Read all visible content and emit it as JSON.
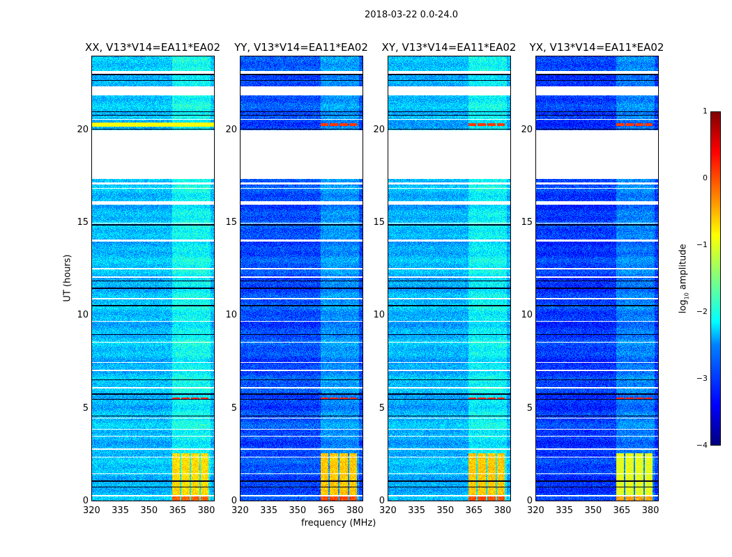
{
  "suptitle": "2018-03-22 0.0-24.0",
  "chart_data": {
    "type": "heatmap",
    "xlabel": "frequency (MHz)",
    "ylabel": "UT (hours)",
    "xlim": [
      320,
      384.5
    ],
    "ylim": [
      0,
      24
    ],
    "xticks": [
      "320",
      "335",
      "350",
      "365",
      "380"
    ],
    "yticks": [
      "0",
      "5",
      "10",
      "15",
      "20"
    ],
    "colorbar": {
      "label_main": "log",
      "label_sub": "10",
      "label_rest": " amplitude",
      "range": [
        -4,
        1
      ],
      "ticks": [
        "1",
        "0",
        "−1",
        "−2",
        "−3",
        "−4"
      ],
      "colormap": "jet"
    },
    "flagged_hours": [
      [
        23.05,
        23.2
      ],
      [
        21.9,
        22.35
      ],
      [
        20.55,
        20.6
      ],
      [
        19.2,
        20.0
      ],
      [
        17.4,
        19.2
      ],
      [
        17.1,
        17.2
      ],
      [
        16.85,
        16.9
      ],
      [
        16.0,
        16.2
      ],
      [
        15.0,
        15.03
      ],
      [
        14.0,
        14.12
      ],
      [
        12.5,
        12.6
      ],
      [
        12.05,
        12.12
      ],
      [
        10.9,
        10.95
      ],
      [
        9.68,
        9.72
      ],
      [
        8.58,
        8.62
      ],
      [
        7.48,
        7.52
      ],
      [
        7.05,
        7.1
      ],
      [
        6.08,
        6.15
      ],
      [
        4.48,
        4.52
      ],
      [
        3.88,
        3.92
      ],
      [
        3.52,
        3.56
      ],
      [
        2.78,
        2.85
      ],
      [
        2.38,
        2.42
      ],
      [
        1.48,
        1.52
      ],
      [
        0.3,
        0.34
      ]
    ],
    "dark_lines_hours": [
      23.0,
      22.7,
      21.0,
      20.8,
      20.05,
      19.8,
      16.1,
      14.9,
      11.9,
      11.5,
      10.55,
      9.0,
      6.55,
      5.8,
      5.5,
      4.6,
      1.1,
      0.8
    ],
    "rfi_band_mhz": [
      362,
      382
    ],
    "panels": [
      {
        "title": "XX, V13*V14=EA11*EA02",
        "base": -2.45,
        "rfi_low_time": -0.7,
        "band_20h": -0.9
      },
      {
        "title": "YY, V13*V14=EA11*EA02",
        "base": -3.0,
        "rfi_low_time": -0.6,
        "band_20h": null
      },
      {
        "title": "XY, V13*V14=EA11*EA02",
        "base": -2.5,
        "rfi_low_time": -0.6,
        "band_20h": null
      },
      {
        "title": "YX, V13*V14=EA11*EA02",
        "base": -3.1,
        "rfi_low_time": -1.0,
        "band_20h": null
      }
    ]
  }
}
